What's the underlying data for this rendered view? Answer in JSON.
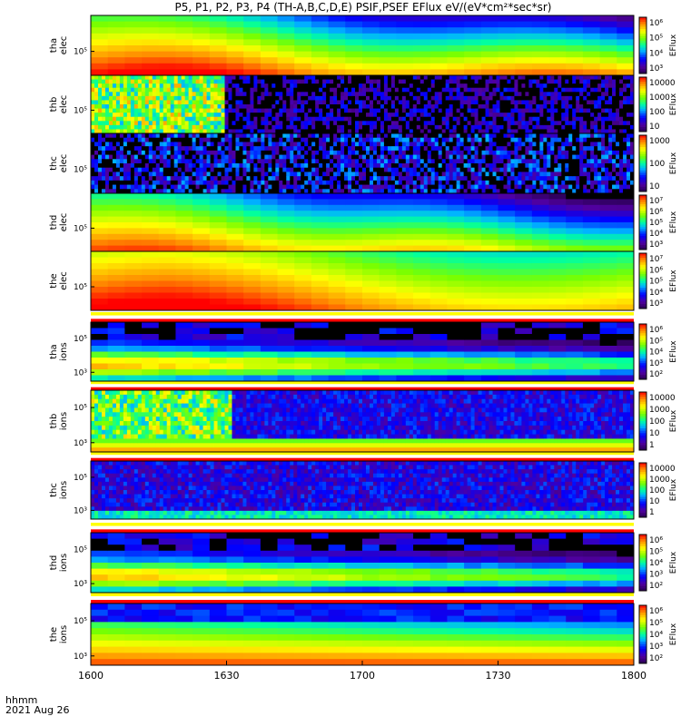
{
  "chart_data": {
    "type": "heatmap",
    "title": "P5, P1, P2, P3, P4 (TH-A,B,C,D,E) PSIF,PSEF EFlux eV/(eV*cm²*sec*sr)",
    "x_ticks": [
      "1600",
      "1630",
      "1700",
      "1730",
      "1800"
    ],
    "x_range_hhmm": [
      "1600",
      "1800"
    ],
    "footer": {
      "line1": "hhmm",
      "line2": "2021 Aug 26"
    },
    "colorbar_label": "EFlux",
    "panels": [
      {
        "id": "tha-elec",
        "label1": "tha",
        "label2": "elec",
        "y_ticks": [
          "10⁵"
        ],
        "colorbar_ticks": [
          "10⁶",
          "10⁵",
          "10⁴",
          "10³"
        ],
        "pattern": "elec_smooth_a",
        "flux_log10": [
          3,
          6.5
        ]
      },
      {
        "id": "thb-elec",
        "label1": "thb",
        "label2": "elec",
        "y_ticks": [
          "10⁵"
        ],
        "colorbar_ticks": [
          "10000",
          "1000",
          "100",
          "10"
        ],
        "pattern": "noisy_burst",
        "flux_log10": [
          1,
          4
        ]
      },
      {
        "id": "thc-elec",
        "label1": "thc",
        "label2": "elec",
        "y_ticks": [
          "10⁵"
        ],
        "colorbar_ticks": [
          "1000",
          "100",
          "10"
        ],
        "pattern": "noisy",
        "flux_log10": [
          1,
          3.3
        ]
      },
      {
        "id": "thd-elec",
        "label1": "thd",
        "label2": "elec",
        "y_ticks": [
          "10⁵"
        ],
        "colorbar_ticks": [
          "10⁷",
          "10⁶",
          "10⁵",
          "10⁴",
          "10³"
        ],
        "pattern": "elec_smooth_d",
        "flux_log10": [
          3,
          7.3
        ]
      },
      {
        "id": "the-elec",
        "label1": "the",
        "label2": "elec",
        "y_ticks": [
          "10⁵"
        ],
        "colorbar_ticks": [
          "10⁷",
          "10⁶",
          "10⁵",
          "10⁴",
          "10³"
        ],
        "pattern": "elec_smooth_e",
        "flux_log10": [
          3,
          7.3
        ]
      },
      {
        "id": "tha-ions",
        "label1": "tha",
        "label2": "ions",
        "y_ticks": [
          "10⁵",
          "10³"
        ],
        "colorbar_ticks": [
          "10⁶",
          "10⁵",
          "10⁴",
          "10³",
          "10²"
        ],
        "pattern": "ions_band",
        "flux_log10": [
          2,
          6.5
        ]
      },
      {
        "id": "thb-ions",
        "label1": "thb",
        "label2": "ions",
        "y_ticks": [
          "10⁵",
          "10³"
        ],
        "colorbar_ticks": [
          "10000",
          "1000",
          "100",
          "10",
          "1"
        ],
        "pattern": "ions_noisy_burst",
        "flux_log10": [
          0,
          4.3
        ]
      },
      {
        "id": "thc-ions",
        "label1": "thc",
        "label2": "ions",
        "y_ticks": [
          "10⁵",
          "10³"
        ],
        "colorbar_ticks": [
          "10000",
          "1000",
          "100",
          "10",
          "1"
        ],
        "pattern": "ions_noisy",
        "flux_log10": [
          0,
          4.3
        ]
      },
      {
        "id": "thd-ions",
        "label1": "thd",
        "label2": "ions",
        "y_ticks": [
          "10⁵",
          "10³"
        ],
        "colorbar_ticks": [
          "10⁶",
          "10⁵",
          "10⁴",
          "10³",
          "10²"
        ],
        "pattern": "ions_band",
        "flux_log10": [
          2,
          6.5
        ]
      },
      {
        "id": "the-ions",
        "label1": "the",
        "label2": "ions",
        "y_ticks": [
          "10⁵",
          "10³"
        ],
        "colorbar_ticks": [
          "10⁶",
          "10⁵",
          "10⁴",
          "10³",
          "10²"
        ],
        "pattern": "ions_smooth",
        "flux_log10": [
          2,
          6.5
        ]
      }
    ]
  }
}
